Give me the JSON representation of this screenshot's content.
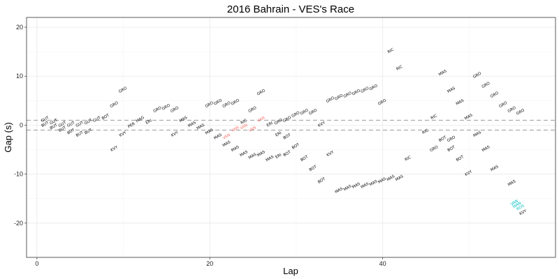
{
  "chart_data": {
    "type": "scatter",
    "title": "2016 Bahrain - VES's Race",
    "xlabel": "Lap",
    "ylabel": "Gap (s)",
    "xlim": [
      -1.2,
      60
    ],
    "ylim": [
      -27,
      22
    ],
    "xticks": [
      0,
      20,
      40
    ],
    "yticks": [
      -20,
      -10,
      0,
      10,
      20
    ],
    "grid": true,
    "reference_lines": [
      1,
      -1
    ],
    "colors": {
      "default": "#000000",
      "highlight_red": "#f8766d",
      "highlight_cyan": "#00bfc4"
    },
    "labels": [
      {
        "text": "GUT",
        "x": 1,
        "y": 1
      },
      {
        "text": "BUT",
        "x": 1,
        "y": 0
      },
      {
        "text": "BUT",
        "x": 2,
        "y": -0.5
      },
      {
        "text": "GUT",
        "x": 2,
        "y": 0.5
      },
      {
        "text": "BUT",
        "x": 3,
        "y": -1
      },
      {
        "text": "GUT",
        "x": 3,
        "y": 0
      },
      {
        "text": "BUT",
        "x": 4,
        "y": -1.5
      },
      {
        "text": "GUT",
        "x": 4,
        "y": 0
      },
      {
        "text": "BUT",
        "x": 5,
        "y": -2
      },
      {
        "text": "GUT",
        "x": 5,
        "y": 0
      },
      {
        "text": "BUT",
        "x": 6,
        "y": -1.5
      },
      {
        "text": "GUT",
        "x": 6,
        "y": 0.5
      },
      {
        "text": "GUT",
        "x": 7,
        "y": 1
      },
      {
        "text": "BOT",
        "x": 8,
        "y": 1.5
      },
      {
        "text": "GRO",
        "x": 9,
        "y": 4
      },
      {
        "text": "GRO",
        "x": 10,
        "y": 7
      },
      {
        "text": "KVY",
        "x": 9,
        "y": -5
      },
      {
        "text": "KVY",
        "x": 10,
        "y": -2
      },
      {
        "text": "PER",
        "x": 11,
        "y": -0.2
      },
      {
        "text": "MAG",
        "x": 12,
        "y": 1
      },
      {
        "text": "ERI",
        "x": 13,
        "y": 0.5
      },
      {
        "text": "GRO",
        "x": 14,
        "y": 3
      },
      {
        "text": "GRO",
        "x": 15,
        "y": 3.5
      },
      {
        "text": "GRO",
        "x": 16,
        "y": 3
      },
      {
        "text": "KVY",
        "x": 16,
        "y": -2
      },
      {
        "text": "MAS",
        "x": 17,
        "y": 1
      },
      {
        "text": "MAS",
        "x": 18,
        "y": 0
      },
      {
        "text": "MAS",
        "x": 19,
        "y": -0.5
      },
      {
        "text": "GRO",
        "x": 20,
        "y": 4
      },
      {
        "text": "GRO",
        "x": 21,
        "y": 4.5
      },
      {
        "text": "GRO",
        "x": 22,
        "y": 4
      },
      {
        "text": "GRO",
        "x": 23,
        "y": 4.5
      },
      {
        "text": "GRO",
        "x": 25,
        "y": 3
      },
      {
        "text": "GRO",
        "x": 26,
        "y": 6.5
      },
      {
        "text": "MAS",
        "x": 20,
        "y": -1.5
      },
      {
        "text": "MAS",
        "x": 21,
        "y": -2.5
      },
      {
        "text": "MAS",
        "x": 22,
        "y": -4
      },
      {
        "text": "MAS",
        "x": 23,
        "y": -5
      },
      {
        "text": "MAS",
        "x": 24,
        "y": -6
      },
      {
        "text": "MAS",
        "x": 25,
        "y": -6.5
      },
      {
        "text": "MAS",
        "x": 26,
        "y": -6
      },
      {
        "text": "MAS",
        "x": 27,
        "y": -7
      },
      {
        "text": "ERI",
        "x": 28,
        "y": -6.5
      },
      {
        "text": "BOT",
        "x": 29,
        "y": -6
      },
      {
        "text": "VAN",
        "x": 22,
        "y": -2.5,
        "c": "highlight_red"
      },
      {
        "text": "VAN",
        "x": 23,
        "y": -1,
        "c": "highlight_red"
      },
      {
        "text": "VAN",
        "x": 24,
        "y": -0.5,
        "c": "highlight_red"
      },
      {
        "text": "VAN",
        "x": 25,
        "y": -1,
        "c": "highlight_red"
      },
      {
        "text": "VAN",
        "x": 26,
        "y": 1,
        "c": "highlight_red"
      },
      {
        "text": "RIC",
        "x": 24,
        "y": 0.5
      },
      {
        "text": "ERI",
        "x": 27,
        "y": 0
      },
      {
        "text": "GRO",
        "x": 28,
        "y": 0.5
      },
      {
        "text": "GRO",
        "x": 29,
        "y": 1
      },
      {
        "text": "GRO",
        "x": 30,
        "y": 2
      },
      {
        "text": "GRO",
        "x": 31,
        "y": 2.5
      },
      {
        "text": "GRO",
        "x": 32,
        "y": 2.5
      },
      {
        "text": "ERI",
        "x": 28,
        "y": -2
      },
      {
        "text": "BOT",
        "x": 29,
        "y": -2.5
      },
      {
        "text": "BOT",
        "x": 30,
        "y": -4.5
      },
      {
        "text": "BOT",
        "x": 31,
        "y": -7
      },
      {
        "text": "BOT",
        "x": 32,
        "y": -9
      },
      {
        "text": "BOT",
        "x": 33,
        "y": -11.5
      },
      {
        "text": "KVY",
        "x": 33,
        "y": 0
      },
      {
        "text": "KVY",
        "x": 34,
        "y": -6
      },
      {
        "text": "GRO",
        "x": 34,
        "y": 5
      },
      {
        "text": "GRO",
        "x": 35,
        "y": 5.5
      },
      {
        "text": "GRO",
        "x": 36,
        "y": 6
      },
      {
        "text": "GRO",
        "x": 37,
        "y": 6.5
      },
      {
        "text": "GRO",
        "x": 38,
        "y": 7
      },
      {
        "text": "GRO",
        "x": 39,
        "y": 7.5
      },
      {
        "text": "GRO",
        "x": 40,
        "y": 4.5
      },
      {
        "text": "MAS",
        "x": 35,
        "y": -13.5
      },
      {
        "text": "MAS",
        "x": 36,
        "y": -13
      },
      {
        "text": "MAS",
        "x": 37,
        "y": -12.5
      },
      {
        "text": "MAS",
        "x": 38,
        "y": -12.5
      },
      {
        "text": "MAS",
        "x": 39,
        "y": -12
      },
      {
        "text": "MAS",
        "x": 40,
        "y": -11.5
      },
      {
        "text": "MAS",
        "x": 41,
        "y": -11
      },
      {
        "text": "MAS",
        "x": 42,
        "y": -11
      },
      {
        "text": "RIC",
        "x": 41,
        "y": 15
      },
      {
        "text": "RIC",
        "x": 42,
        "y": 11.5
      },
      {
        "text": "RIC",
        "x": 43,
        "y": -7
      },
      {
        "text": "RIC",
        "x": 45,
        "y": -1.5
      },
      {
        "text": "RIC",
        "x": 46,
        "y": 1.5
      },
      {
        "text": "GRO",
        "x": 46,
        "y": -5
      },
      {
        "text": "GRO",
        "x": 48,
        "y": -3
      },
      {
        "text": "BOT",
        "x": 47,
        "y": -3
      },
      {
        "text": "BOT",
        "x": 48,
        "y": -5
      },
      {
        "text": "BOT",
        "x": 49,
        "y": -7
      },
      {
        "text": "MAS",
        "x": 47,
        "y": 10.5
      },
      {
        "text": "MAS",
        "x": 48,
        "y": 7
      },
      {
        "text": "MAS",
        "x": 49,
        "y": 4.5
      },
      {
        "text": "MAS",
        "x": 50,
        "y": 1.5
      },
      {
        "text": "KVY",
        "x": 50,
        "y": -10
      },
      {
        "text": "MAS",
        "x": 51,
        "y": -2
      },
      {
        "text": "MAS",
        "x": 52,
        "y": -5
      },
      {
        "text": "MAS",
        "x": 53,
        "y": -9
      },
      {
        "text": "MAS",
        "x": 55,
        "y": -12
      },
      {
        "text": "GRO",
        "x": 51,
        "y": 10
      },
      {
        "text": "GRO",
        "x": 52,
        "y": 8
      },
      {
        "text": "GRO",
        "x": 53,
        "y": 6
      },
      {
        "text": "GRO",
        "x": 54,
        "y": 4
      },
      {
        "text": "GRO",
        "x": 55,
        "y": 3
      },
      {
        "text": "GRO",
        "x": 56,
        "y": 2.5
      },
      {
        "text": "VAN",
        "x": 55.3,
        "y": -16,
        "c": "highlight_cyan"
      },
      {
        "text": "WAN",
        "x": 55.6,
        "y": -16.5,
        "c": "highlight_cyan"
      },
      {
        "text": "ROS",
        "x": 56,
        "y": -17,
        "c": "highlight_cyan"
      },
      {
        "text": "KVY",
        "x": 56.3,
        "y": -18
      }
    ]
  }
}
